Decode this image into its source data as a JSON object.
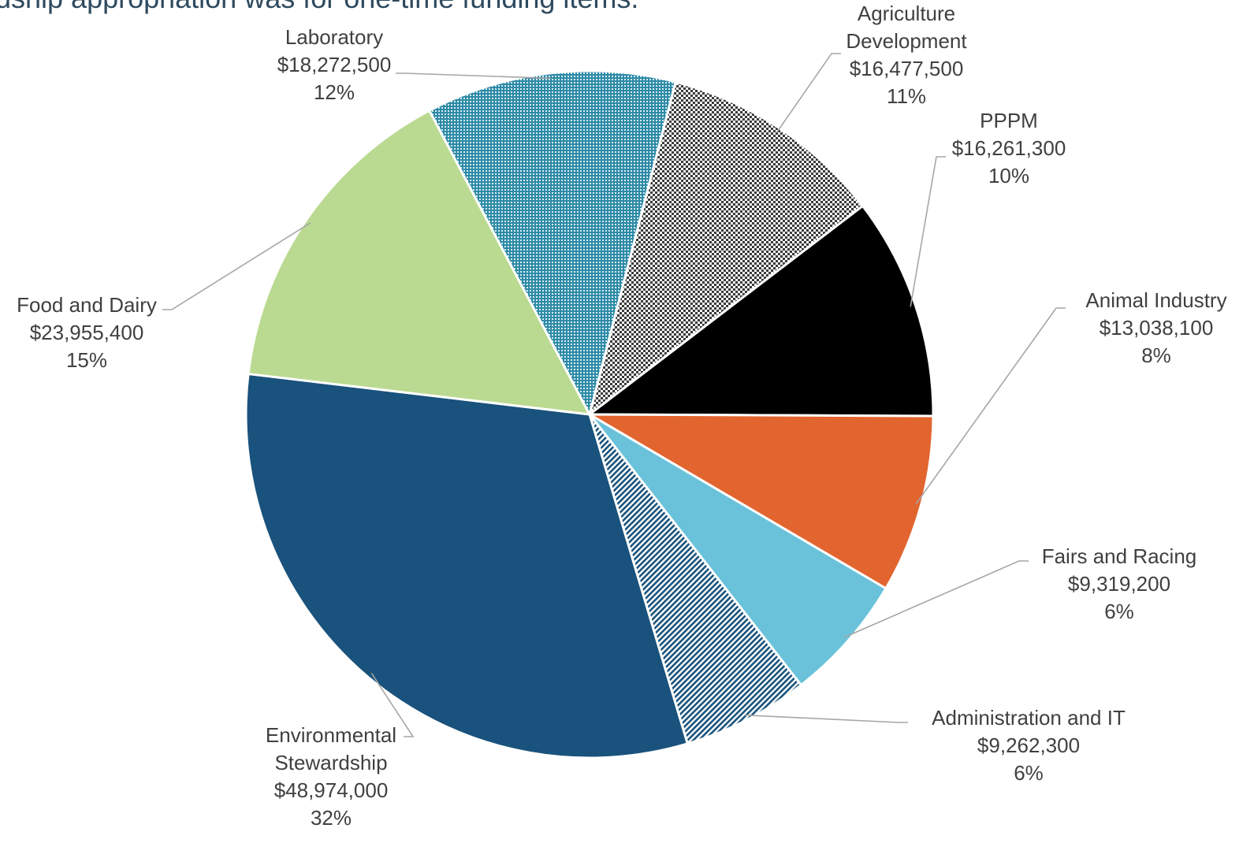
{
  "partial_title": "rdship appropriation was for one-time funding items.",
  "chart_data": {
    "type": "pie",
    "title": "",
    "currency_symbol": "$",
    "slices": [
      {
        "label": "Agriculture Development",
        "label_lines": [
          "Agriculture",
          "Development"
        ],
        "value": 16477500,
        "value_text": "$16,477,500",
        "percent": "11%",
        "color": "#5a5a5a",
        "pattern": "checker"
      },
      {
        "label": "PPPM",
        "label_lines": [
          "PPPM"
        ],
        "value": 16261300,
        "value_text": "$16,261,300",
        "percent": "10%",
        "color": "#000000",
        "pattern": "solid"
      },
      {
        "label": "Animal Industry",
        "label_lines": [
          "Animal Industry"
        ],
        "value": 13038100,
        "value_text": "$13,038,100",
        "percent": "8%",
        "color": "#e2652f",
        "pattern": "solid"
      },
      {
        "label": "Fairs and Racing",
        "label_lines": [
          "Fairs and Racing"
        ],
        "value": 9319200,
        "value_text": "$9,319,200",
        "percent": "6%",
        "color": "#6ac2da",
        "pattern": "solid"
      },
      {
        "label": "Administration and IT",
        "label_lines": [
          "Administration and IT"
        ],
        "value": 9262300,
        "value_text": "$9,262,300",
        "percent": "6%",
        "color": "#19527c",
        "pattern": "diagonal"
      },
      {
        "label": "Environmental Stewardship",
        "label_lines": [
          "Environmental",
          "Stewardship"
        ],
        "value": 48974000,
        "value_text": "$48,974,000",
        "percent": "32%",
        "color": "#19527c",
        "pattern": "solid"
      },
      {
        "label": "Food and Dairy",
        "label_lines": [
          "Food and Dairy"
        ],
        "value": 23955400,
        "value_text": "$23,955,400",
        "percent": "15%",
        "color": "#bada91",
        "pattern": "solid"
      },
      {
        "label": "Laboratory",
        "label_lines": [
          "Laboratory"
        ],
        "value": 18272500,
        "value_text": "$18,272,500",
        "percent": "12%",
        "color": "#2e8aa6",
        "pattern": "dots"
      }
    ]
  }
}
